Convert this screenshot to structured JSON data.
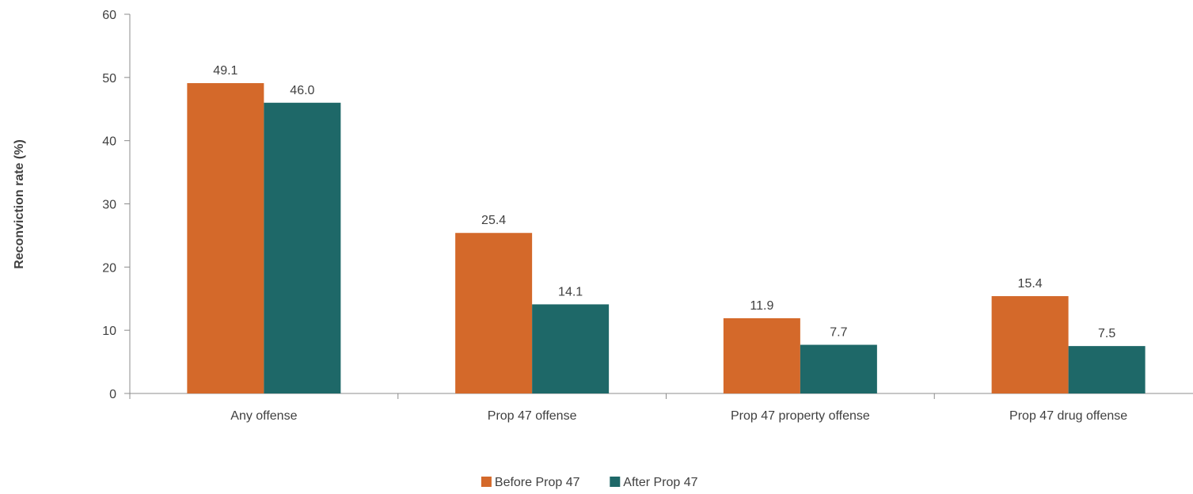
{
  "chart_data": {
    "type": "bar",
    "title": "",
    "xlabel": "",
    "ylabel": "Reconviction rate (%)",
    "ylim": [
      0,
      60
    ],
    "yticks": [
      0,
      10,
      20,
      30,
      40,
      50,
      60
    ],
    "grid": false,
    "legend_position": "bottom",
    "categories": [
      "Any offense",
      "Prop 47 offense",
      "Prop 47 property offense",
      "Prop 47 drug offense"
    ],
    "series": [
      {
        "name": "Before Prop 47",
        "color": "#D4692A",
        "values": [
          49.1,
          25.4,
          11.9,
          15.4
        ],
        "labels": [
          "49.1",
          "25.4",
          "11.9",
          "15.4"
        ]
      },
      {
        "name": "After Prop 47",
        "color": "#1E6868",
        "values": [
          46.0,
          14.1,
          7.7,
          7.5
        ],
        "labels": [
          "46.0",
          "14.1",
          "7.7",
          "7.5"
        ]
      }
    ]
  }
}
